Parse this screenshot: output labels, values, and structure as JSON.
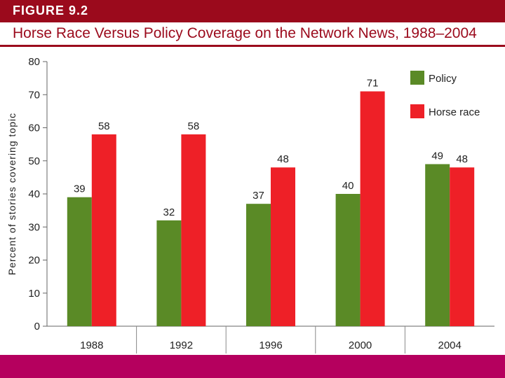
{
  "figure": {
    "label": "FIGURE 9.2",
    "title": "Horse Race Versus Policy Coverage on the Network News, 1988–2004"
  },
  "colors": {
    "header": "#9b0a1c",
    "policy": "#5a8a26",
    "horse_race": "#ee2027",
    "bottom_band": "#b5005e"
  },
  "chart_data": {
    "type": "bar",
    "title": "Horse Race Versus Policy Coverage on the Network News, 1988–2004",
    "xlabel": "",
    "ylabel": "Percent of stories covering topic",
    "categories": [
      "1988",
      "1992",
      "1996",
      "2000",
      "2004"
    ],
    "series": [
      {
        "name": "Policy",
        "values": [
          39,
          32,
          37,
          40,
          49
        ]
      },
      {
        "name": "Horse race",
        "values": [
          58,
          58,
          48,
          71,
          48
        ]
      }
    ],
    "ylim": [
      0,
      80
    ],
    "yticks": [
      0,
      10,
      20,
      30,
      40,
      50,
      60,
      70,
      80
    ],
    "grid": false,
    "legend": "top-right"
  }
}
